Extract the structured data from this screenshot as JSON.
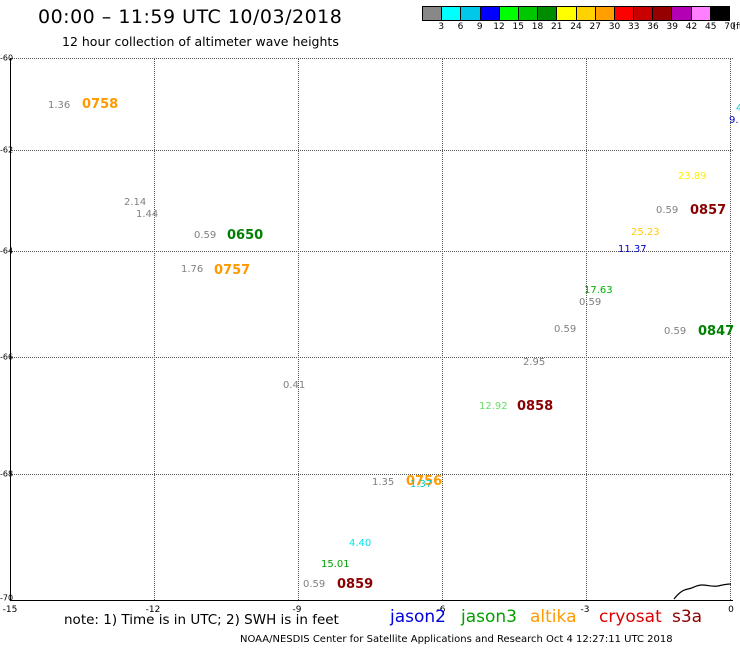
{
  "header": {
    "title": "00:00 – 11:59 UTC 10/03/2018",
    "subtitle": "12 hour collection of altimeter wave heights"
  },
  "color_scale": {
    "unit": "(ft)",
    "labels": [
      "3",
      "6",
      "9",
      "12",
      "15",
      "18",
      "21",
      "24",
      "27",
      "30",
      "33",
      "36",
      "39",
      "42",
      "45",
      "70"
    ],
    "colors": [
      "#888888",
      "#00ffff",
      "#00c8e6",
      "#0000ff",
      "#00ff00",
      "#00c800",
      "#008c00",
      "#ffff00",
      "#ffd200",
      "#ffa000",
      "#ff0000",
      "#c80000",
      "#960000",
      "#b400b4",
      "#ff80ff",
      "#000000"
    ]
  },
  "axes": {
    "x_ticks": [
      "-15",
      "-12",
      "-9",
      "-6",
      "-3",
      "0"
    ],
    "y_ticks": [
      "-60",
      "-62",
      "-64",
      "-66",
      "-68",
      "-70"
    ]
  },
  "observations": [
    {
      "text": "1.36",
      "color": "#808080"
    },
    {
      "text": "0758",
      "color": "#ff9900"
    },
    {
      "text": "2.14",
      "color": "#808080"
    },
    {
      "text": "1.44",
      "color": "#808080"
    },
    {
      "text": "0.59",
      "color": "#808080"
    },
    {
      "text": "0650",
      "color": "#008000"
    },
    {
      "text": "1.76",
      "color": "#808080"
    },
    {
      "text": "0757",
      "color": "#ff9900"
    },
    {
      "text": "0.41",
      "color": "#808080"
    },
    {
      "text": "1.35",
      "color": "#808080"
    },
    {
      "text": "0756",
      "color": "#ff9900"
    },
    {
      "text": "1.37",
      "color": "#00cccc"
    },
    {
      "text": "4.40",
      "color": "#00e5ee"
    },
    {
      "text": "15.01",
      "color": "#00a000"
    },
    {
      "text": "0.59",
      "color": "#808080"
    },
    {
      "text": "0859",
      "color": "#8b0000"
    },
    {
      "text": "12.92",
      "color": "#66dd66"
    },
    {
      "text": "0858",
      "color": "#8b0000"
    },
    {
      "text": "2.95",
      "color": "#808080"
    },
    {
      "text": "0.59",
      "color": "#808080"
    },
    {
      "text": "0.59",
      "color": "#808080"
    },
    {
      "text": "17.63",
      "color": "#00b000"
    },
    {
      "text": "0.59",
      "color": "#808080"
    },
    {
      "text": "0847",
      "color": "#008000"
    },
    {
      "text": "11.37",
      "color": "#0000cc"
    },
    {
      "text": "25.23",
      "color": "#ffcc00"
    },
    {
      "text": "0.59",
      "color": "#808080"
    },
    {
      "text": "0857",
      "color": "#8b0000"
    },
    {
      "text": "23.89",
      "color": "#ffee00"
    },
    {
      "text": "9.",
      "color": "#0000cc"
    },
    {
      "text": "4",
      "color": "#00cccc"
    }
  ],
  "note": "note: 1) Time is in UTC; 2) SWH is in feet",
  "legend": [
    {
      "label": "jason2",
      "color": "#0000dd"
    },
    {
      "label": "jason3",
      "color": "#00a000"
    },
    {
      "label": "altika",
      "color": "#ff9900"
    },
    {
      "label": "cryosat",
      "color": "#dd0000"
    },
    {
      "label": "s3a",
      "color": "#8b0000"
    }
  ],
  "footer": "NOAA/NESDIS Center for Satellite Applications and Research    Oct  4 12:27:11 UTC 2018"
}
